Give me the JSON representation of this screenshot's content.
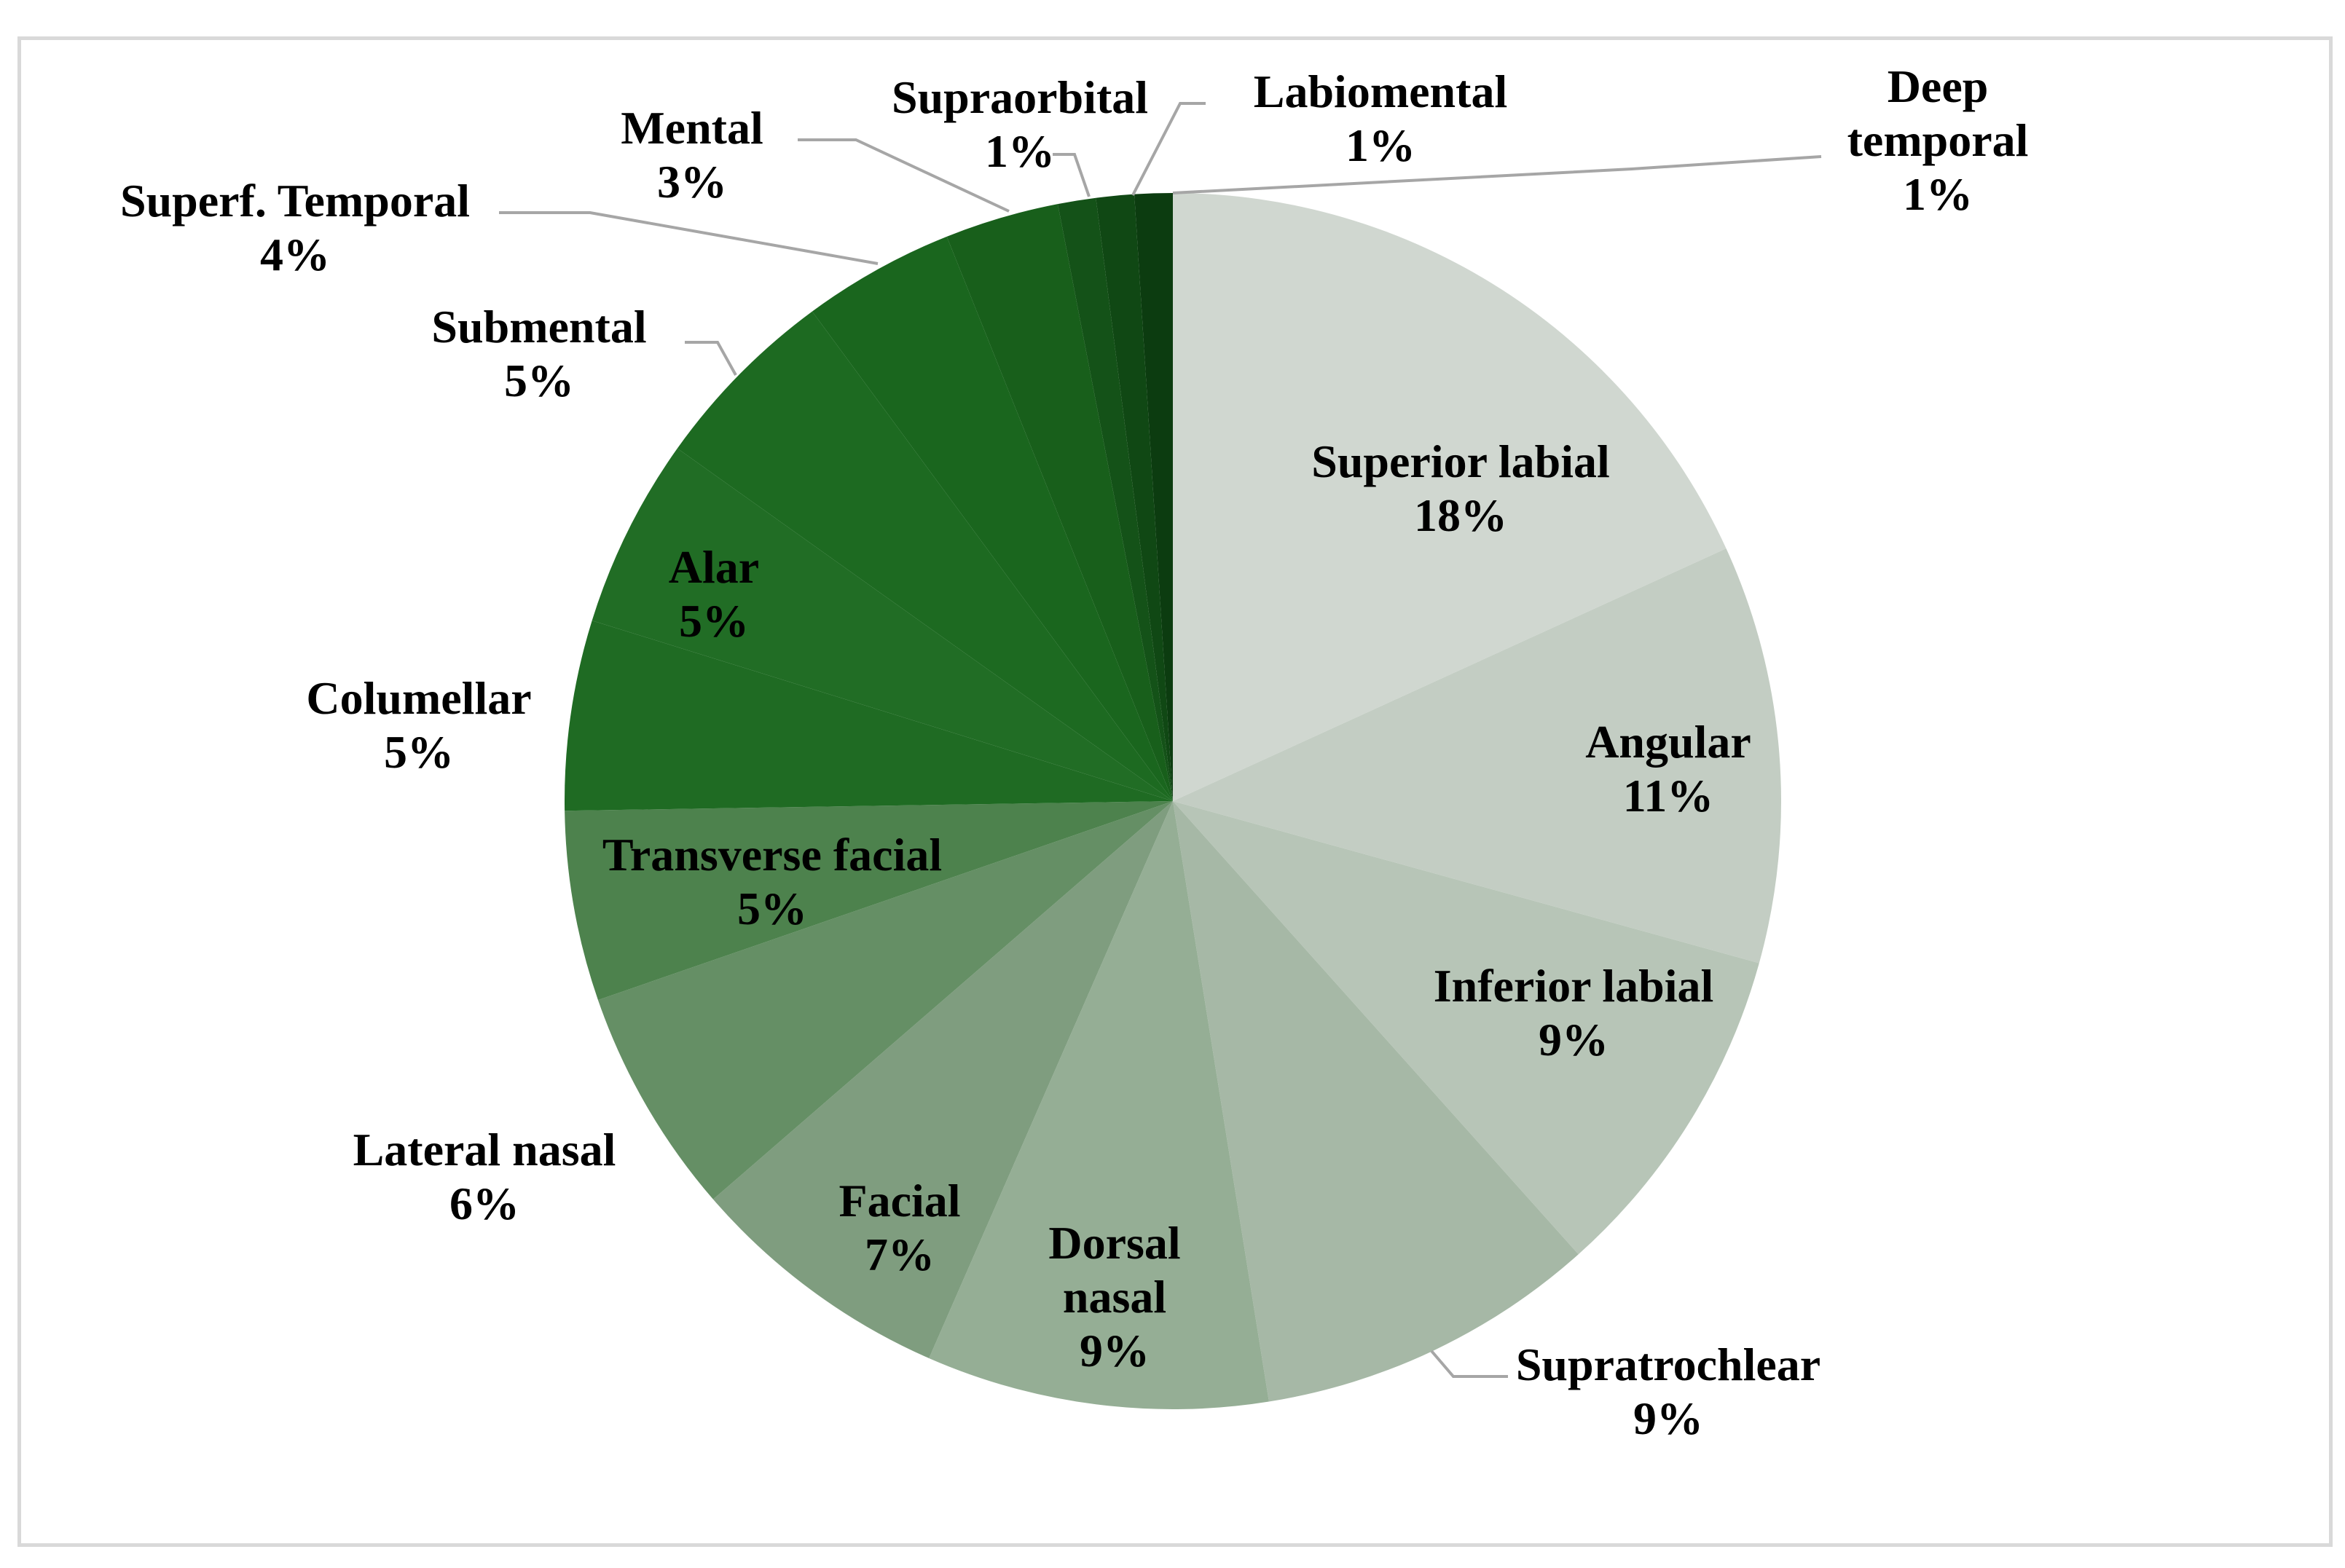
{
  "chart_data": {
    "type": "pie",
    "start": "12 o'clock",
    "direction": "clockwise",
    "slices": [
      {
        "label": [
          "Superior labial"
        ],
        "value": 18,
        "value_label": "18%",
        "color": "#d0d7d0"
      },
      {
        "label": [
          "Angular"
        ],
        "value": 11,
        "value_label": "11%",
        "color": "#c3cdc3"
      },
      {
        "label": [
          "Inferior labial"
        ],
        "value": 9,
        "value_label": "9%",
        "color": "#b7c5b7"
      },
      {
        "label": [
          "Supratrochlear"
        ],
        "value": 9,
        "value_label": "9%",
        "color": "#a6b8a6"
      },
      {
        "label": [
          "Dorsal",
          "nasal"
        ],
        "value": 9,
        "value_label": "9%",
        "color": "#95ae95"
      },
      {
        "label": [
          "Facial"
        ],
        "value": 7,
        "value_label": "7%",
        "color": "#7f9d7f"
      },
      {
        "label": [
          "Lateral nasal"
        ],
        "value": 6,
        "value_label": "6%",
        "color": "#658f65"
      },
      {
        "label": [
          "Transverse facial"
        ],
        "value": 5,
        "value_label": "5%",
        "color": "#4d824d"
      },
      {
        "label": [
          "Columellar"
        ],
        "value": 5,
        "value_label": "5%",
        "color": "#1f6b23"
      },
      {
        "label": [
          "Alar"
        ],
        "value": 5,
        "value_label": "5%",
        "color": "#216d25"
      },
      {
        "label": [
          "Submental"
        ],
        "value": 5,
        "value_label": "5%",
        "color": "#1d6a21"
      },
      {
        "label": [
          "Superf. Temporal"
        ],
        "value": 4,
        "value_label": "4%",
        "color": "#1a661e"
      },
      {
        "label": [
          "Mental"
        ],
        "value": 3,
        "value_label": "3%",
        "color": "#185f1b"
      },
      {
        "label": [
          "Supraorbital"
        ],
        "value": 1,
        "value_label": "1%",
        "color": "#145218"
      },
      {
        "label": [
          "Labiomental"
        ],
        "value": 1,
        "value_label": "1%",
        "color": "#104814"
      },
      {
        "label": [
          "Deep",
          "temporal"
        ],
        "value": 1,
        "value_label": "1%",
        "color": "#0c3c10"
      }
    ],
    "title": "",
    "legend": "none"
  }
}
